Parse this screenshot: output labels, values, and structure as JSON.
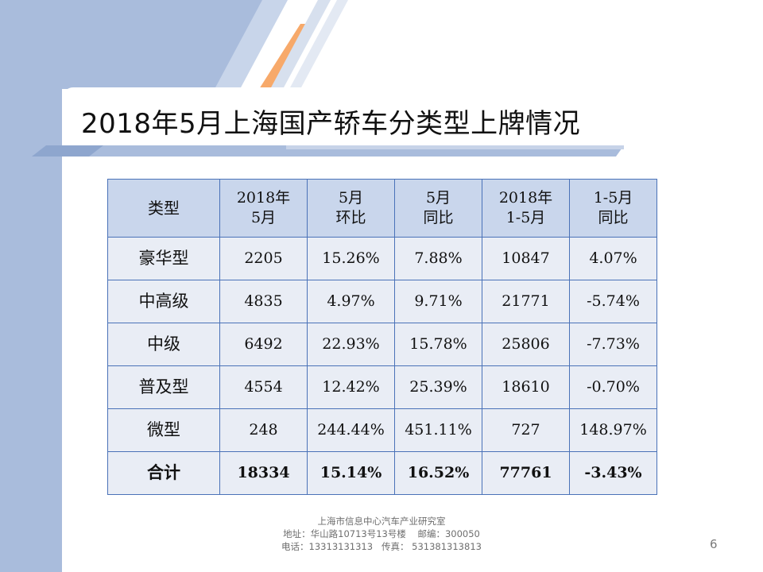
{
  "slide": {
    "title": "2018年5月上海国产轿车分类型上牌情况",
    "page_number": "6"
  },
  "table": {
    "headers": [
      {
        "line1": "类型",
        "line2": ""
      },
      {
        "line1": "2018年",
        "line2": "5月"
      },
      {
        "line1": "5月",
        "line2": "环比"
      },
      {
        "line1": "5月",
        "line2": "同比"
      },
      {
        "line1": "2018年",
        "line2": "1-5月"
      },
      {
        "line1": "1-5月",
        "line2": "同比"
      }
    ],
    "rows": [
      [
        "豪华型",
        "2205",
        "15.26%",
        "7.88%",
        "10847",
        "4.07%"
      ],
      [
        "中高级",
        "4835",
        "4.97%",
        "9.71%",
        "21771",
        "-5.74%"
      ],
      [
        "中级",
        "6492",
        "22.93%",
        "15.78%",
        "25806",
        "-7.73%"
      ],
      [
        "普及型",
        "4554",
        "12.42%",
        "25.39%",
        "18610",
        "-0.70%"
      ],
      [
        "微型",
        "248",
        "244.44%",
        "451.11%",
        "727",
        "148.97%"
      ],
      [
        "合计",
        "18334",
        "15.14%",
        "16.52%",
        "77761",
        "-3.43%"
      ]
    ]
  },
  "footer": {
    "line1": "上海市信息中心汽车产业研究室",
    "line2": "地址：华山路10713号13号楼    邮编：300050",
    "line3": "电话：13313131313   传真： 531381313813"
  },
  "colors": {
    "left_band": "#a9bcdc",
    "table_border": "#4a72b8",
    "header_fill": "#c9d6ec",
    "body_fill": "#e9edf5",
    "accent_orange": "#f7a96a"
  }
}
